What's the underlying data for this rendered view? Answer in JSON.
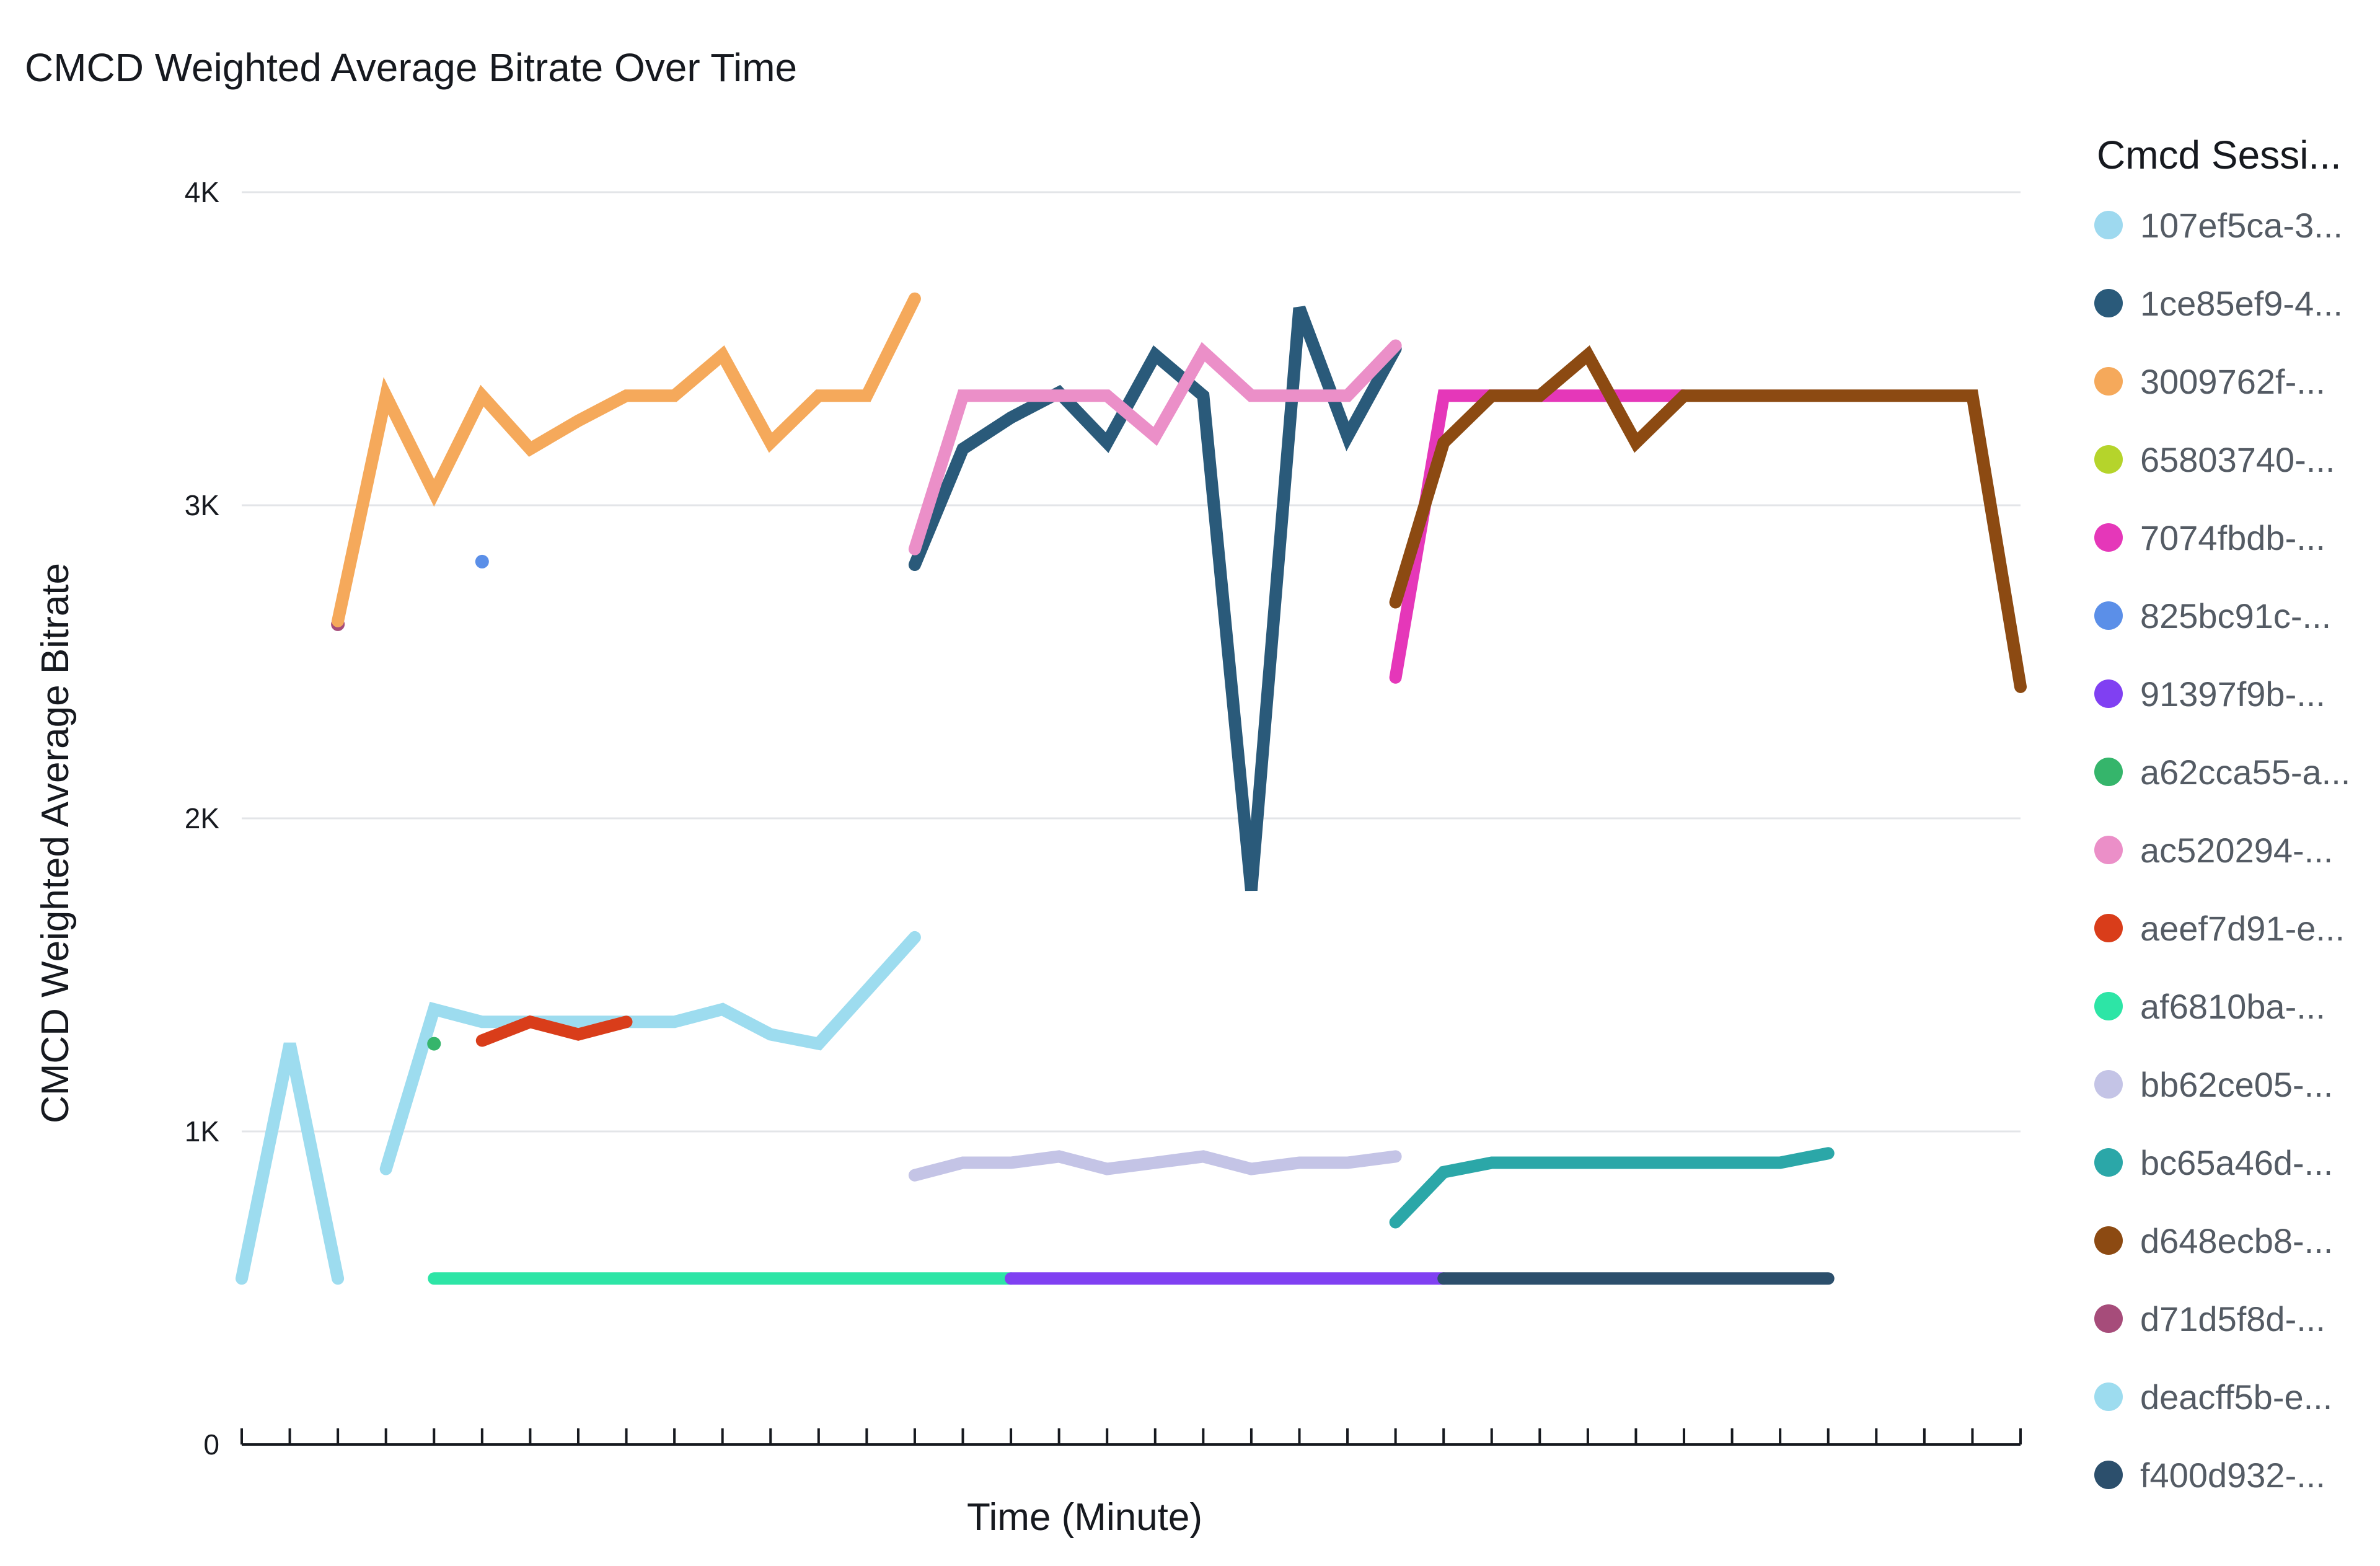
{
  "chart_data": {
    "type": "line",
    "title": "CMCD Weighted Average Bitrate Over Time",
    "xlabel": "Time (Minute)",
    "ylabel": "CMCD Weighted Average Bitrate",
    "ylim": [
      0,
      4000
    ],
    "yticks": [
      {
        "value": 0,
        "label": "0"
      },
      {
        "value": 1000,
        "label": "1K"
      },
      {
        "value": 2000,
        "label": "2K"
      },
      {
        "value": 3000,
        "label": "3K"
      },
      {
        "value": 4000,
        "label": "4K"
      }
    ],
    "x_count": 38,
    "grid": true,
    "legend": {
      "title": "Cmcd Sessi...",
      "placement": "right"
    },
    "series": [
      {
        "name": "107ef5ca-3...",
        "color": "#9ed9ef",
        "points": []
      },
      {
        "name": "1ce85ef9-4...",
        "color": "#2a5a7a",
        "points": [
          [
            14,
            2810
          ],
          [
            15,
            3180
          ],
          [
            16,
            3280
          ],
          [
            17,
            3360
          ],
          [
            18,
            3200
          ],
          [
            19,
            3480
          ],
          [
            20,
            3350
          ],
          [
            21,
            1770
          ],
          [
            22,
            3630
          ],
          [
            23,
            3220
          ],
          [
            24,
            3500
          ]
        ]
      },
      {
        "name": "3009762f-...",
        "color": "#f5a95b",
        "points": [
          [
            2,
            2630
          ],
          [
            3,
            3350
          ],
          [
            4,
            3040
          ],
          [
            5,
            3350
          ],
          [
            6,
            3180
          ],
          [
            7,
            3270
          ],
          [
            8,
            3350
          ],
          [
            9,
            3350
          ],
          [
            10,
            3480
          ],
          [
            11,
            3200
          ],
          [
            12,
            3350
          ],
          [
            13,
            3350
          ],
          [
            14,
            3660
          ]
        ]
      },
      {
        "name": "65803740-...",
        "color": "#b5d42b",
        "points": []
      },
      {
        "name": "7074fbdb-...",
        "color": "#e537b9",
        "points": [
          [
            24,
            2450
          ],
          [
            25,
            3350
          ],
          [
            26,
            3350
          ],
          [
            27,
            3350
          ],
          [
            28,
            3350
          ],
          [
            29,
            3350
          ],
          [
            30,
            3350
          ]
        ]
      },
      {
        "name": "825bc91c-...",
        "color": "#5b8fe8",
        "points": [
          [
            5,
            2820
          ]
        ]
      },
      {
        "name": "91397f9b-...",
        "color": "#8040f2",
        "points": [
          [
            16,
            530
          ],
          [
            17,
            530
          ],
          [
            18,
            530
          ],
          [
            19,
            530
          ],
          [
            20,
            530
          ],
          [
            21,
            530
          ],
          [
            22,
            530
          ],
          [
            23,
            530
          ],
          [
            24,
            530
          ],
          [
            25,
            530
          ]
        ]
      },
      {
        "name": "a62cca55-a...",
        "color": "#35b56b",
        "points": [
          [
            4,
            1280
          ]
        ]
      },
      {
        "name": "ac520294-...",
        "color": "#eb8fc8",
        "points": [
          [
            14,
            2860
          ],
          [
            15,
            3350
          ],
          [
            16,
            3350
          ],
          [
            17,
            3350
          ],
          [
            18,
            3350
          ],
          [
            19,
            3220
          ],
          [
            20,
            3490
          ],
          [
            21,
            3350
          ],
          [
            22,
            3350
          ],
          [
            23,
            3350
          ],
          [
            24,
            3510
          ]
        ]
      },
      {
        "name": "aeef7d91-e...",
        "color": "#d93d1a",
        "points": [
          [
            5,
            1290
          ],
          [
            6,
            1350
          ],
          [
            7,
            1310
          ],
          [
            8,
            1350
          ]
        ]
      },
      {
        "name": "af6810ba-...",
        "color": "#2de5a6",
        "points": [
          [
            4,
            530
          ],
          [
            5,
            530
          ],
          [
            6,
            530
          ],
          [
            7,
            530
          ],
          [
            8,
            530
          ],
          [
            9,
            530
          ],
          [
            10,
            530
          ],
          [
            11,
            530
          ],
          [
            12,
            530
          ],
          [
            13,
            530
          ],
          [
            14,
            530
          ],
          [
            15,
            530
          ],
          [
            16,
            530
          ]
        ]
      },
      {
        "name": "bb62ce05-...",
        "color": "#c4c4e6",
        "points": [
          [
            14,
            860
          ],
          [
            15,
            900
          ],
          [
            16,
            900
          ],
          [
            17,
            920
          ],
          [
            18,
            880
          ],
          [
            19,
            900
          ],
          [
            20,
            920
          ],
          [
            21,
            880
          ],
          [
            22,
            900
          ],
          [
            23,
            900
          ],
          [
            24,
            920
          ]
        ]
      },
      {
        "name": "bc65a46d-...",
        "color": "#2ba7a8",
        "points": [
          [
            24,
            710
          ],
          [
            25,
            870
          ],
          [
            26,
            900
          ],
          [
            27,
            900
          ],
          [
            28,
            900
          ],
          [
            29,
            900
          ],
          [
            30,
            900
          ],
          [
            31,
            900
          ],
          [
            32,
            900
          ],
          [
            33,
            930
          ]
        ]
      },
      {
        "name": "d648ecb8-...",
        "color": "#8c4a12",
        "points": [
          [
            24,
            2690
          ],
          [
            25,
            3200
          ],
          [
            26,
            3350
          ],
          [
            27,
            3350
          ],
          [
            28,
            3480
          ],
          [
            29,
            3200
          ],
          [
            30,
            3350
          ],
          [
            31,
            3350
          ],
          [
            32,
            3350
          ],
          [
            33,
            3350
          ],
          [
            34,
            3350
          ],
          [
            35,
            3350
          ],
          [
            36,
            3350
          ],
          [
            37,
            2420
          ]
        ]
      },
      {
        "name": "d71d5f8d-...",
        "color": "#a64c7a",
        "points": [
          [
            2,
            2620
          ]
        ]
      },
      {
        "name": "deacff5b-e...",
        "color": "#9ddcef",
        "points": [
          [
            0,
            530
          ],
          [
            1,
            1280
          ],
          [
            2,
            530
          ]
        ],
        "segments": [
          [
            [
              0,
              530
            ],
            [
              1,
              1280
            ],
            [
              2,
              530
            ]
          ],
          [
            [
              3,
              880
            ],
            [
              4,
              1390
            ],
            [
              5,
              1350
            ],
            [
              6,
              1350
            ],
            [
              7,
              1350
            ],
            [
              8,
              1350
            ],
            [
              9,
              1350
            ],
            [
              10,
              1390
            ],
            [
              11,
              1310
            ],
            [
              12,
              1280
            ],
            [
              13,
              1450
            ],
            [
              14,
              1620
            ]
          ]
        ]
      },
      {
        "name": "f400d932-...",
        "color": "#2c4f6c",
        "points": [
          [
            25,
            530
          ],
          [
            26,
            530
          ],
          [
            27,
            530
          ],
          [
            28,
            530
          ],
          [
            29,
            530
          ],
          [
            30,
            530
          ],
          [
            31,
            530
          ],
          [
            32,
            530
          ],
          [
            33,
            530
          ]
        ]
      }
    ]
  }
}
